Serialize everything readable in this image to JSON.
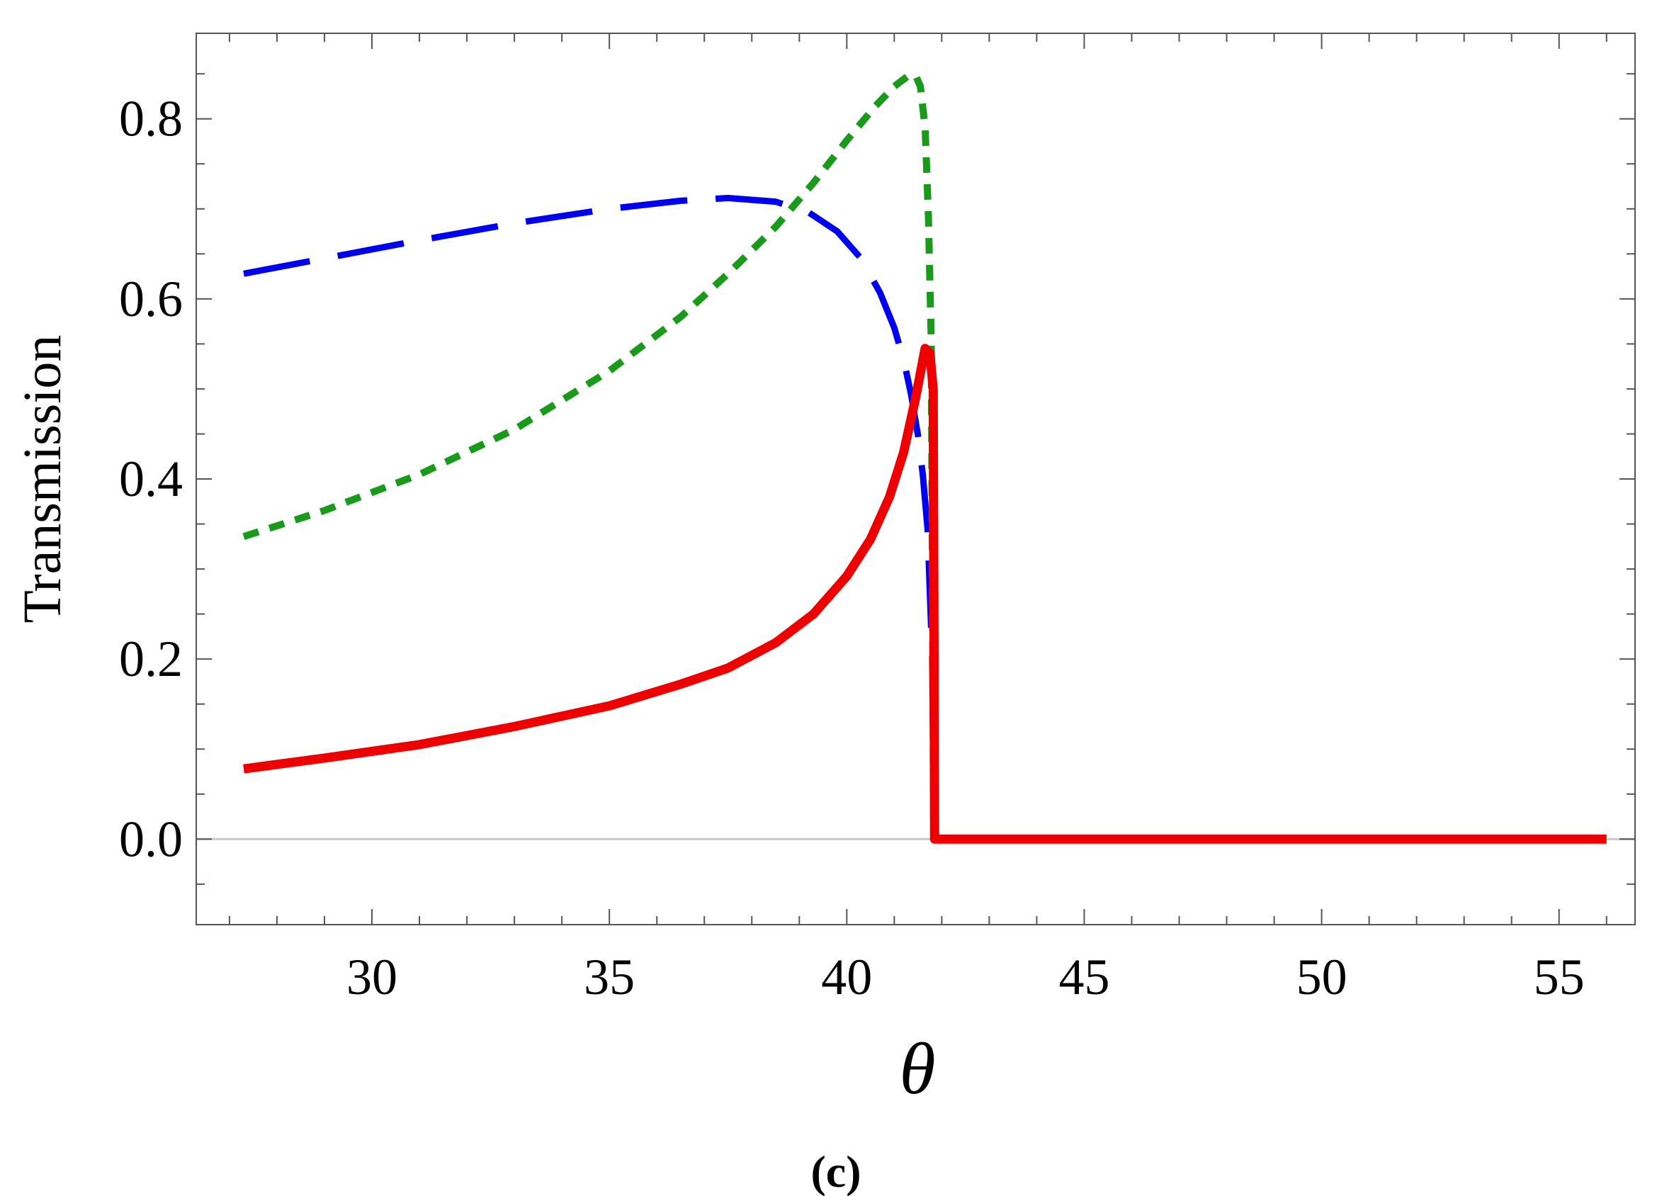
{
  "chart_data": {
    "type": "line",
    "title": "",
    "xlabel": "θ",
    "ylabel": "Transmission",
    "caption": "(c)",
    "xlim": [
      26.3,
      56.6
    ],
    "ylim": [
      -0.095,
      0.895
    ],
    "x_ticks": [
      30,
      35,
      40,
      45,
      50,
      55
    ],
    "x_tick_labels": [
      "30",
      "35",
      "40",
      "45",
      "50",
      "55"
    ],
    "y_ticks": [
      0.0,
      0.2,
      0.4,
      0.6,
      0.8
    ],
    "y_tick_labels": [
      "0.0",
      "0.2",
      "0.4",
      "0.6",
      "0.8"
    ],
    "grid": false,
    "legend": "none",
    "series": [
      {
        "style": "long-dash",
        "color": "#0000ee",
        "x": [
          27.3,
          29.0,
          31.0,
          33.0,
          35.0,
          36.5,
          37.5,
          38.5,
          39.2,
          39.8,
          40.3,
          40.7,
          41.0,
          41.2,
          41.35,
          41.5,
          41.6,
          41.7,
          41.8,
          41.83
        ],
        "y": [
          0.628,
          0.645,
          0.665,
          0.684,
          0.7,
          0.709,
          0.712,
          0.708,
          0.696,
          0.675,
          0.645,
          0.607,
          0.568,
          0.532,
          0.495,
          0.448,
          0.405,
          0.345,
          0.2,
          0.0
        ]
      },
      {
        "style": "dotted",
        "color": "#1a9a1a",
        "x": [
          27.3,
          29.0,
          31.0,
          33.0,
          35.0,
          36.5,
          37.5,
          38.5,
          39.3,
          40.0,
          40.6,
          41.0,
          41.3,
          41.45,
          41.55,
          41.65,
          41.72,
          41.78,
          41.83
        ],
        "y": [
          0.336,
          0.365,
          0.405,
          0.455,
          0.52,
          0.58,
          0.628,
          0.68,
          0.729,
          0.776,
          0.814,
          0.836,
          0.848,
          0.848,
          0.836,
          0.79,
          0.69,
          0.55,
          0.0
        ]
      },
      {
        "style": "solid",
        "color": "#ee0000",
        "x": [
          27.3,
          29.0,
          31.0,
          33.0,
          35.0,
          36.5,
          37.5,
          38.5,
          39.3,
          40.0,
          40.5,
          40.9,
          41.2,
          41.45,
          41.65,
          41.75,
          41.82,
          41.85,
          42.0,
          47.0,
          52.0,
          56.0
        ],
        "y": [
          0.078,
          0.09,
          0.105,
          0.125,
          0.148,
          0.172,
          0.19,
          0.218,
          0.25,
          0.292,
          0.333,
          0.38,
          0.43,
          0.49,
          0.545,
          0.54,
          0.5,
          0.0,
          0.0,
          0.0,
          0.0,
          0.0
        ]
      }
    ]
  }
}
